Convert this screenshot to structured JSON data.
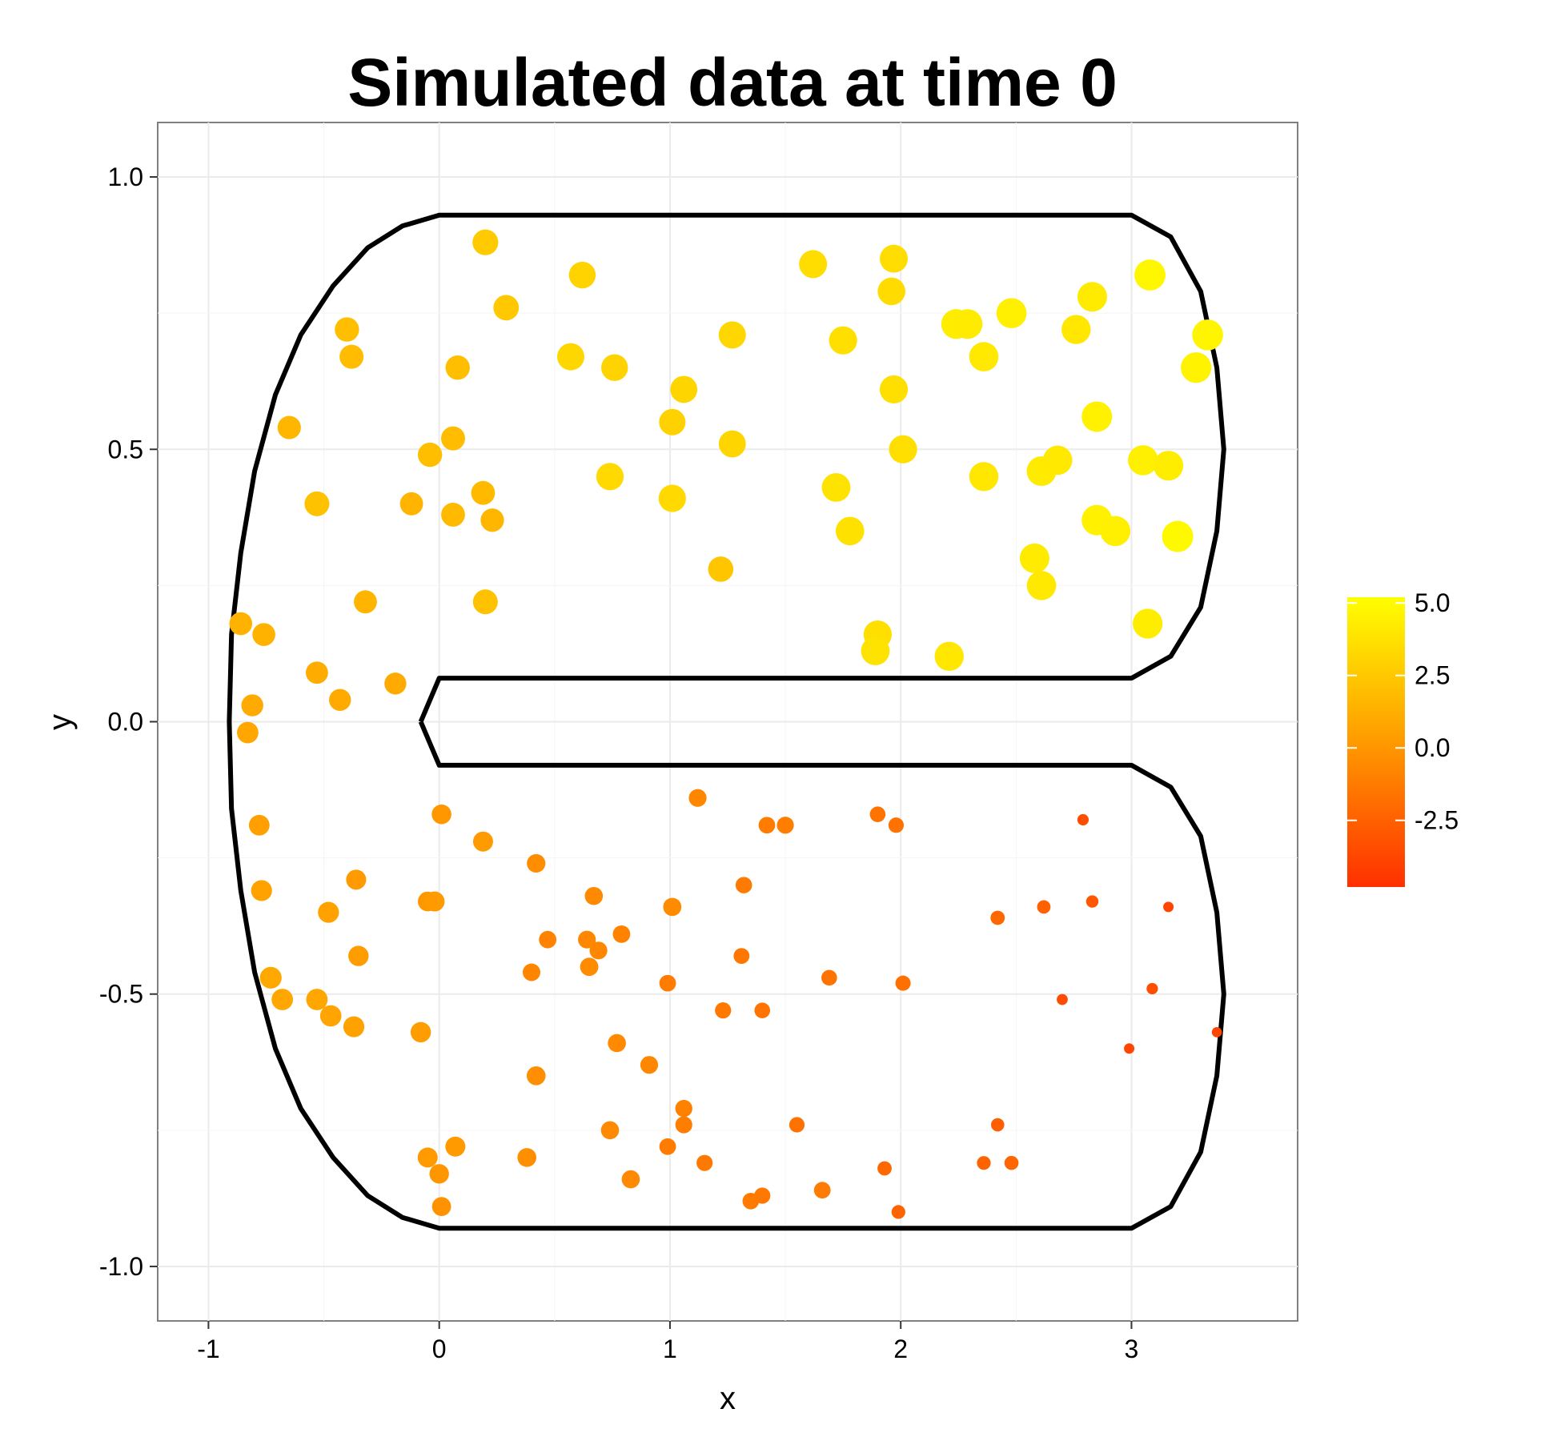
{
  "chart_data": {
    "type": "scatter",
    "title": "Simulated data at time 0",
    "xlabel": "x",
    "ylabel": "y",
    "xlim": [
      -1.22,
      3.72
    ],
    "ylim": [
      -1.1,
      1.1
    ],
    "x_ticks": [
      -1,
      0,
      1,
      2,
      3
    ],
    "x_tick_labels": [
      "-1",
      "0",
      "1",
      "2",
      "3"
    ],
    "y_ticks": [
      -1.0,
      -0.5,
      0.0,
      0.5,
      1.0
    ],
    "y_tick_labels": [
      "-1.0",
      "-0.5",
      "0.0",
      "0.5",
      "1.0"
    ],
    "grid": true,
    "panel_background": "#ffffff",
    "grid_color": "#ebebeb",
    "legend": {
      "position": "right",
      "type": "colorbar",
      "min": -4.8,
      "max": 5.2,
      "ticks": [
        5.0,
        2.5,
        0.0,
        -2.5
      ],
      "tick_labels": [
        "5.0",
        "2.5",
        "0.0",
        "-2.5"
      ],
      "low_color": "#ff3000",
      "mid_color": "#ff9a00",
      "high_color": "#ffff00"
    },
    "boundary": [
      [
        -0.08,
        0.0
      ],
      [
        0.0,
        0.08
      ],
      [
        3.0,
        0.08
      ],
      [
        3.17,
        0.12
      ],
      [
        3.3,
        0.21
      ],
      [
        3.37,
        0.35
      ],
      [
        3.4,
        0.5
      ],
      [
        3.37,
        0.65
      ],
      [
        3.3,
        0.79
      ],
      [
        3.17,
        0.89
      ],
      [
        3.0,
        0.93
      ],
      [
        0.0,
        0.93
      ],
      [
        -0.16,
        0.91
      ],
      [
        -0.31,
        0.87
      ],
      [
        -0.46,
        0.8
      ],
      [
        -0.6,
        0.71
      ],
      [
        -0.71,
        0.6
      ],
      [
        -0.8,
        0.46
      ],
      [
        -0.86,
        0.31
      ],
      [
        -0.9,
        0.16
      ],
      [
        -0.91,
        0.0
      ],
      [
        -0.9,
        -0.16
      ],
      [
        -0.86,
        -0.31
      ],
      [
        -0.8,
        -0.46
      ],
      [
        -0.71,
        -0.6
      ],
      [
        -0.6,
        -0.71
      ],
      [
        -0.46,
        -0.8
      ],
      [
        -0.31,
        -0.87
      ],
      [
        -0.16,
        -0.91
      ],
      [
        0.0,
        -0.93
      ],
      [
        3.0,
        -0.93
      ],
      [
        3.17,
        -0.89
      ],
      [
        3.3,
        -0.79
      ],
      [
        3.37,
        -0.65
      ],
      [
        3.4,
        -0.5
      ],
      [
        3.37,
        -0.35
      ],
      [
        3.3,
        -0.21
      ],
      [
        3.17,
        -0.12
      ],
      [
        3.0,
        -0.08
      ],
      [
        0.0,
        -0.08
      ],
      [
        -0.08,
        0.0
      ]
    ],
    "points": [
      {
        "x": 0.2,
        "y": 0.88,
        "v": 2.6
      },
      {
        "x": 0.62,
        "y": 0.82,
        "v": 3.0
      },
      {
        "x": 0.29,
        "y": 0.76,
        "v": 2.5
      },
      {
        "x": -0.4,
        "y": 0.72,
        "v": 2.0
      },
      {
        "x": -0.38,
        "y": 0.67,
        "v": 1.9
      },
      {
        "x": 0.08,
        "y": 0.65,
        "v": 2.0
      },
      {
        "x": 0.57,
        "y": 0.67,
        "v": 3.2
      },
      {
        "x": 0.76,
        "y": 0.65,
        "v": 3.0
      },
      {
        "x": 1.27,
        "y": 0.71,
        "v": 3.2
      },
      {
        "x": 1.06,
        "y": 0.61,
        "v": 3.1
      },
      {
        "x": 1.62,
        "y": 0.84,
        "v": 3.5
      },
      {
        "x": 1.97,
        "y": 0.85,
        "v": 3.5
      },
      {
        "x": 1.96,
        "y": 0.79,
        "v": 3.4
      },
      {
        "x": 1.75,
        "y": 0.7,
        "v": 3.6
      },
      {
        "x": 2.24,
        "y": 0.73,
        "v": 4.3
      },
      {
        "x": 2.29,
        "y": 0.73,
        "v": 4.2
      },
      {
        "x": 2.48,
        "y": 0.75,
        "v": 4.4
      },
      {
        "x": 2.36,
        "y": 0.67,
        "v": 4.1
      },
      {
        "x": 2.76,
        "y": 0.72,
        "v": 4.0
      },
      {
        "x": 2.83,
        "y": 0.78,
        "v": 4.2
      },
      {
        "x": 3.08,
        "y": 0.82,
        "v": 4.8
      },
      {
        "x": 3.33,
        "y": 0.71,
        "v": 4.7
      },
      {
        "x": 3.28,
        "y": 0.65,
        "v": 4.6
      },
      {
        "x": -0.65,
        "y": 0.54,
        "v": 1.6
      },
      {
        "x": 0.06,
        "y": 0.52,
        "v": 1.9
      },
      {
        "x": -0.04,
        "y": 0.49,
        "v": 2.0
      },
      {
        "x": 1.01,
        "y": 0.55,
        "v": 2.9
      },
      {
        "x": 1.27,
        "y": 0.51,
        "v": 3.1
      },
      {
        "x": 1.97,
        "y": 0.61,
        "v": 3.6
      },
      {
        "x": 2.85,
        "y": 0.56,
        "v": 4.5
      },
      {
        "x": 2.01,
        "y": 0.5,
        "v": 3.6
      },
      {
        "x": 0.74,
        "y": 0.45,
        "v": 3.3
      },
      {
        "x": 1.01,
        "y": 0.41,
        "v": 3.3
      },
      {
        "x": 1.72,
        "y": 0.43,
        "v": 3.8
      },
      {
        "x": 2.36,
        "y": 0.45,
        "v": 4.0
      },
      {
        "x": 2.61,
        "y": 0.46,
        "v": 4.2
      },
      {
        "x": 2.68,
        "y": 0.48,
        "v": 4.1
      },
      {
        "x": 3.05,
        "y": 0.48,
        "v": 4.4
      },
      {
        "x": 3.16,
        "y": 0.47,
        "v": 4.3
      },
      {
        "x": -0.53,
        "y": 0.4,
        "v": 2.2
      },
      {
        "x": -0.12,
        "y": 0.4,
        "v": 1.5
      },
      {
        "x": 0.06,
        "y": 0.38,
        "v": 1.8
      },
      {
        "x": 0.19,
        "y": 0.42,
        "v": 1.8
      },
      {
        "x": 0.23,
        "y": 0.37,
        "v": 1.6
      },
      {
        "x": 1.78,
        "y": 0.35,
        "v": 3.7
      },
      {
        "x": 2.85,
        "y": 0.37,
        "v": 4.5
      },
      {
        "x": 2.93,
        "y": 0.35,
        "v": 4.4
      },
      {
        "x": 3.2,
        "y": 0.34,
        "v": 4.9
      },
      {
        "x": 2.58,
        "y": 0.3,
        "v": 4.2
      },
      {
        "x": 2.61,
        "y": 0.25,
        "v": 4.1
      },
      {
        "x": 1.22,
        "y": 0.28,
        "v": 2.4
      },
      {
        "x": -0.32,
        "y": 0.22,
        "v": 1.5
      },
      {
        "x": 0.2,
        "y": 0.22,
        "v": 2.2
      },
      {
        "x": -0.86,
        "y": 0.18,
        "v": 1.4
      },
      {
        "x": -0.76,
        "y": 0.16,
        "v": 1.4
      },
      {
        "x": 3.07,
        "y": 0.18,
        "v": 4.3
      },
      {
        "x": 1.9,
        "y": 0.16,
        "v": 3.6
      },
      {
        "x": 1.89,
        "y": 0.13,
        "v": 3.8
      },
      {
        "x": 2.21,
        "y": 0.12,
        "v": 4.0
      },
      {
        "x": -0.53,
        "y": 0.09,
        "v": 1.1
      },
      {
        "x": -0.19,
        "y": 0.07,
        "v": 1.0
      },
      {
        "x": -0.43,
        "y": 0.04,
        "v": 1.0
      },
      {
        "x": -0.81,
        "y": 0.03,
        "v": 1.0
      },
      {
        "x": -0.83,
        "y": -0.02,
        "v": 0.8
      },
      {
        "x": -0.78,
        "y": -0.19,
        "v": 0.5
      },
      {
        "x": 0.01,
        "y": -0.17,
        "v": 0.1
      },
      {
        "x": 0.19,
        "y": -0.22,
        "v": 0.2
      },
      {
        "x": 1.12,
        "y": -0.14,
        "v": -0.7
      },
      {
        "x": 1.42,
        "y": -0.19,
        "v": -1.2
      },
      {
        "x": 1.5,
        "y": -0.19,
        "v": -1.1
      },
      {
        "x": 1.9,
        "y": -0.17,
        "v": -1.6
      },
      {
        "x": 1.98,
        "y": -0.19,
        "v": -1.7
      },
      {
        "x": 2.79,
        "y": -0.18,
        "v": -3.4
      },
      {
        "x": -0.77,
        "y": -0.31,
        "v": 0.6
      },
      {
        "x": -0.36,
        "y": -0.29,
        "v": 0.2
      },
      {
        "x": -0.48,
        "y": -0.35,
        "v": 0.6
      },
      {
        "x": -0.05,
        "y": -0.33,
        "v": 0.1
      },
      {
        "x": -0.02,
        "y": -0.33,
        "v": 0.2
      },
      {
        "x": 0.42,
        "y": -0.26,
        "v": -0.4
      },
      {
        "x": 0.67,
        "y": -0.32,
        "v": -0.6
      },
      {
        "x": 1.01,
        "y": -0.34,
        "v": -0.5
      },
      {
        "x": 1.32,
        "y": -0.3,
        "v": -1.3
      },
      {
        "x": 2.42,
        "y": -0.36,
        "v": -2.2
      },
      {
        "x": 2.62,
        "y": -0.34,
        "v": -2.5
      },
      {
        "x": 2.83,
        "y": -0.33,
        "v": -3.0
      },
      {
        "x": 3.16,
        "y": -0.34,
        "v": -3.8
      },
      {
        "x": 0.47,
        "y": -0.4,
        "v": -0.9
      },
      {
        "x": 0.64,
        "y": -0.4,
        "v": -0.7
      },
      {
        "x": 0.69,
        "y": -0.42,
        "v": -0.7
      },
      {
        "x": 0.79,
        "y": -0.39,
        "v": -0.9
      },
      {
        "x": -0.35,
        "y": -0.43,
        "v": 0.3
      },
      {
        "x": 0.4,
        "y": -0.46,
        "v": -0.8
      },
      {
        "x": 0.65,
        "y": -0.45,
        "v": -0.5
      },
      {
        "x": 1.31,
        "y": -0.43,
        "v": -1.5
      },
      {
        "x": -0.73,
        "y": -0.47,
        "v": 0.9
      },
      {
        "x": -0.68,
        "y": -0.51,
        "v": 0.8
      },
      {
        "x": -0.53,
        "y": -0.51,
        "v": 0.8
      },
      {
        "x": -0.47,
        "y": -0.54,
        "v": 0.7
      },
      {
        "x": -0.37,
        "y": -0.56,
        "v": 0.6
      },
      {
        "x": 0.99,
        "y": -0.48,
        "v": -1.2
      },
      {
        "x": 1.69,
        "y": -0.47,
        "v": -1.6
      },
      {
        "x": 2.01,
        "y": -0.48,
        "v": -1.8
      },
      {
        "x": 2.7,
        "y": -0.51,
        "v": -3.5
      },
      {
        "x": 3.09,
        "y": -0.49,
        "v": -3.4
      },
      {
        "x": 1.23,
        "y": -0.53,
        "v": -1.4
      },
      {
        "x": 1.4,
        "y": -0.53,
        "v": -1.6
      },
      {
        "x": -0.08,
        "y": -0.57,
        "v": 0.3
      },
      {
        "x": 0.77,
        "y": -0.59,
        "v": -0.6
      },
      {
        "x": 0.91,
        "y": -0.63,
        "v": -0.7
      },
      {
        "x": 2.99,
        "y": -0.6,
        "v": -3.8
      },
      {
        "x": 3.37,
        "y": -0.57,
        "v": -3.9
      },
      {
        "x": 0.42,
        "y": -0.65,
        "v": -0.3
      },
      {
        "x": 1.06,
        "y": -0.71,
        "v": -1.0
      },
      {
        "x": 1.06,
        "y": -0.74,
        "v": -1.1
      },
      {
        "x": 1.55,
        "y": -0.74,
        "v": -1.7
      },
      {
        "x": 2.42,
        "y": -0.74,
        "v": -2.6
      },
      {
        "x": 0.74,
        "y": -0.75,
        "v": -0.6
      },
      {
        "x": 0.07,
        "y": -0.78,
        "v": 0.2
      },
      {
        "x": -0.05,
        "y": -0.8,
        "v": 0.2
      },
      {
        "x": 0.38,
        "y": -0.8,
        "v": -0.3
      },
      {
        "x": 0.99,
        "y": -0.78,
        "v": -1.2
      },
      {
        "x": 1.15,
        "y": -0.81,
        "v": -1.4
      },
      {
        "x": 0.0,
        "y": -0.83,
        "v": 0.0
      },
      {
        "x": 1.93,
        "y": -0.82,
        "v": -2.2
      },
      {
        "x": 2.36,
        "y": -0.81,
        "v": -2.4
      },
      {
        "x": 2.48,
        "y": -0.81,
        "v": -2.3
      },
      {
        "x": 0.83,
        "y": -0.84,
        "v": -0.6
      },
      {
        "x": 1.66,
        "y": -0.86,
        "v": -1.2
      },
      {
        "x": 1.35,
        "y": -0.88,
        "v": -1.3
      },
      {
        "x": 1.4,
        "y": -0.87,
        "v": -1.4
      },
      {
        "x": 0.01,
        "y": -0.89,
        "v": -0.2
      },
      {
        "x": 1.99,
        "y": -0.9,
        "v": -2.4
      }
    ]
  }
}
